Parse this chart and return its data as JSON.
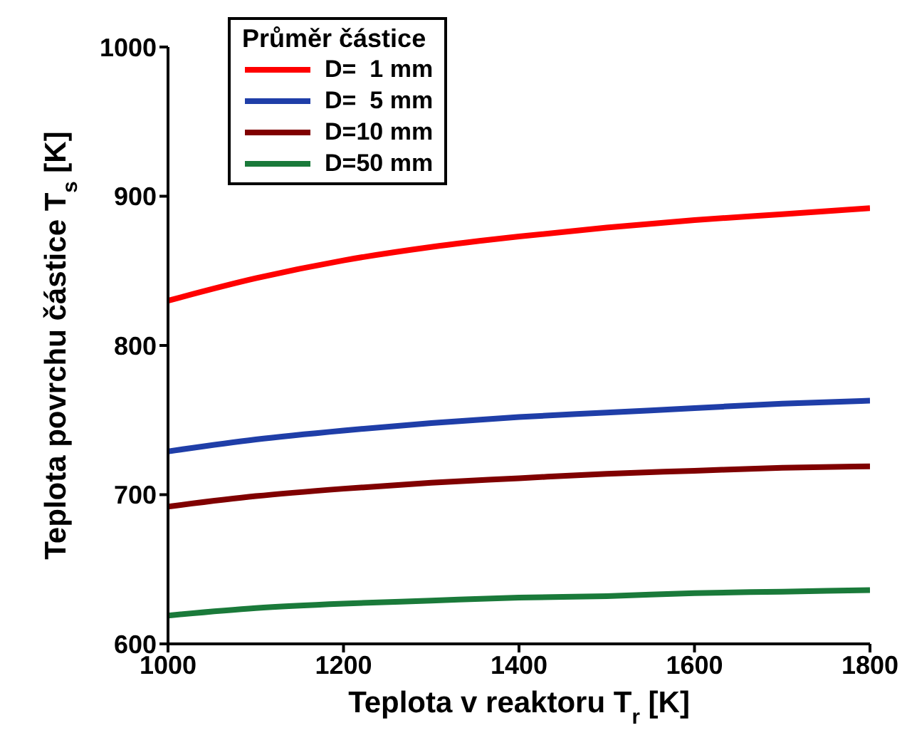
{
  "chart_data": {
    "type": "line",
    "xlabel": "Teplota v reaktoru T$_{r}$ [K]",
    "ylabel": "Teplota povrchu částice T$_{s}$ [K]",
    "legend_title": "Průměr částice",
    "legend": "top left",
    "x": [
      1000,
      1100,
      1200,
      1300,
      1400,
      1500,
      1600,
      1700,
      1800
    ],
    "xlim": [
      1000,
      1800
    ],
    "xticks": [
      1000,
      1200,
      1400,
      1600,
      1800
    ],
    "ylim": [
      600,
      1000
    ],
    "yticks": [
      600,
      700,
      800,
      900,
      1000
    ],
    "grid": false,
    "marker": "none",
    "line_style": "solid",
    "series": [
      {
        "name": "D=  1 mm",
        "color": "#ff0000",
        "values": [
          830,
          845,
          857,
          866,
          873,
          879,
          884,
          888,
          892
        ]
      },
      {
        "name": "D=  5 mm",
        "color": "#1f3ea8",
        "values": [
          729,
          737,
          743,
          748,
          752,
          755,
          758,
          761,
          763
        ]
      },
      {
        "name": "D=10 mm",
        "color": "#800000",
        "values": [
          692,
          699,
          704,
          708,
          711,
          714,
          716,
          718,
          719
        ]
      },
      {
        "name": "D=50 mm",
        "color": "#1a7a3a",
        "values": [
          619,
          624,
          627,
          629,
          631,
          632,
          634,
          635,
          636
        ]
      }
    ]
  }
}
